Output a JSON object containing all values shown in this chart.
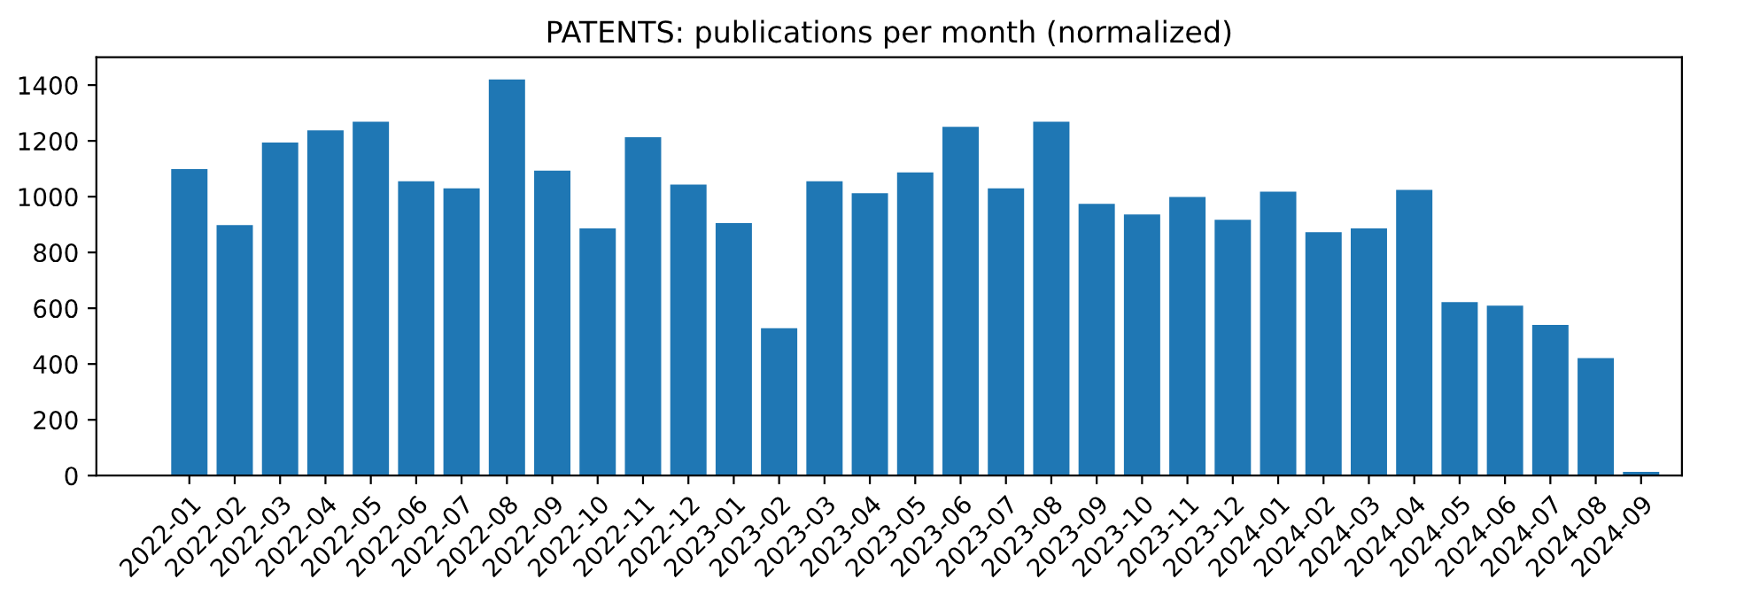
{
  "chart_data": {
    "type": "bar",
    "title": "PATENTS: publications per month (normalized)",
    "categories": [
      "2022-01",
      "2022-02",
      "2022-03",
      "2022-04",
      "2022-05",
      "2022-06",
      "2022-07",
      "2022-08",
      "2022-09",
      "2022-10",
      "2022-11",
      "2022-12",
      "2023-01",
      "2023-02",
      "2023-03",
      "2023-04",
      "2023-05",
      "2023-06",
      "2023-07",
      "2023-08",
      "2023-09",
      "2023-10",
      "2023-11",
      "2023-12",
      "2024-01",
      "2024-02",
      "2024-03",
      "2024-04",
      "2024-05",
      "2024-06",
      "2024-07",
      "2024-08",
      "2024-09"
    ],
    "values": [
      1099,
      898,
      1194,
      1238,
      1269,
      1055,
      1030,
      1420,
      1093,
      886,
      1213,
      1043,
      905,
      528,
      1055,
      1012,
      1087,
      1250,
      1030,
      1269,
      974,
      936,
      999,
      917,
      1018,
      873,
      886,
      1024,
      622,
      609,
      540,
      421,
      13
    ],
    "color": "#1f77b4",
    "ylim": [
      0,
      1500
    ],
    "yticks": [
      0,
      200,
      400,
      600,
      800,
      1000,
      1200,
      1400
    ],
    "grid": false
  }
}
